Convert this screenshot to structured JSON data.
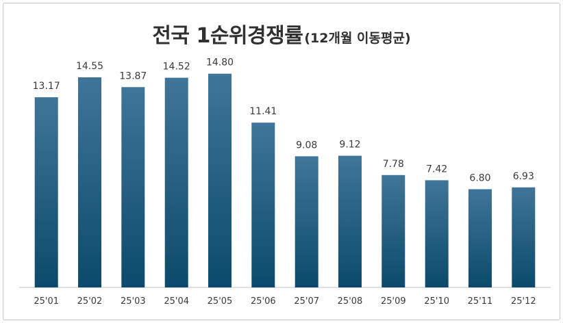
{
  "chart_data": {
    "type": "bar",
    "title": "전국 1순위경쟁률",
    "subtitle": "(12개월 이동평균)",
    "categories": [
      "25'01",
      "25'02",
      "25'03",
      "25'04",
      "25'05",
      "25'06",
      "25'07",
      "25'08",
      "25'09",
      "25'10",
      "25'11",
      "25'12"
    ],
    "values": [
      13.17,
      14.55,
      13.87,
      14.52,
      14.8,
      11.41,
      9.08,
      9.12,
      7.78,
      7.42,
      6.8,
      6.93
    ],
    "value_labels": [
      "13.17",
      "14.55",
      "13.87",
      "14.52",
      "14.80",
      "11.41",
      "9.08",
      "9.12",
      "7.78",
      "7.42",
      "6.80",
      "6.93"
    ],
    "ylim": [
      0,
      16
    ],
    "grid": false,
    "legend": "none",
    "colors": {
      "bar_top": "#3f7598",
      "bar_bottom": "#0b4a6c",
      "axis": "#bfbfbf",
      "text": "#3a3a3a"
    }
  }
}
